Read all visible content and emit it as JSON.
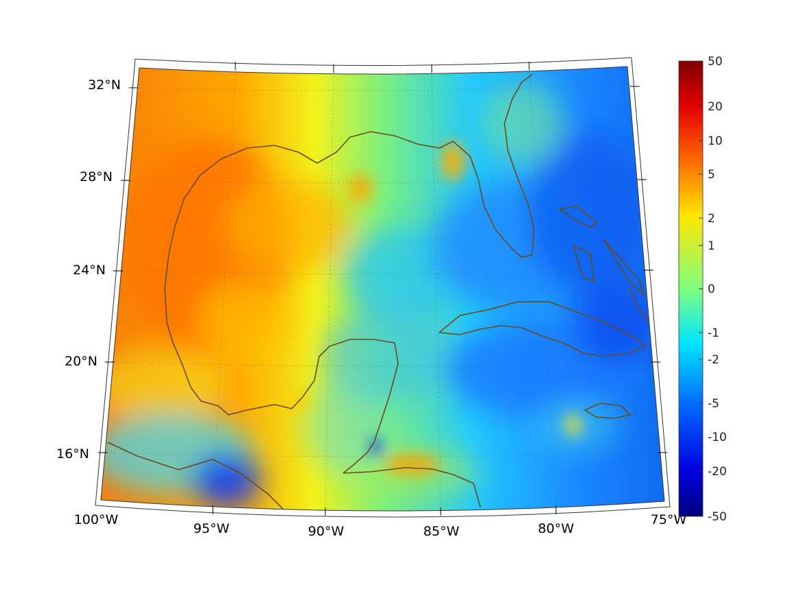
{
  "map": {
    "projection": "lambert-conformal",
    "lon_ticks": [
      "100°W",
      "95°W",
      "90°W",
      "85°W",
      "80°W",
      "75°W"
    ],
    "lat_ticks": [
      "32°N",
      "28°N",
      "24°N",
      "20°N",
      "16°N"
    ],
    "coastline_color": "#6b4a1a",
    "grid": "dotted"
  },
  "colorbar": {
    "colormap": "jet",
    "labels": [
      "50",
      "20",
      "10",
      "5",
      "2",
      "1",
      "0",
      "-1",
      "-2",
      "-5",
      "-10",
      "-20",
      "-50"
    ]
  },
  "regions": {
    "warm_west": "#ff7f00",
    "gulf_center": "#cfee30",
    "cool_east": "#1f8cff",
    "deep_blue": "#0a3cff"
  }
}
